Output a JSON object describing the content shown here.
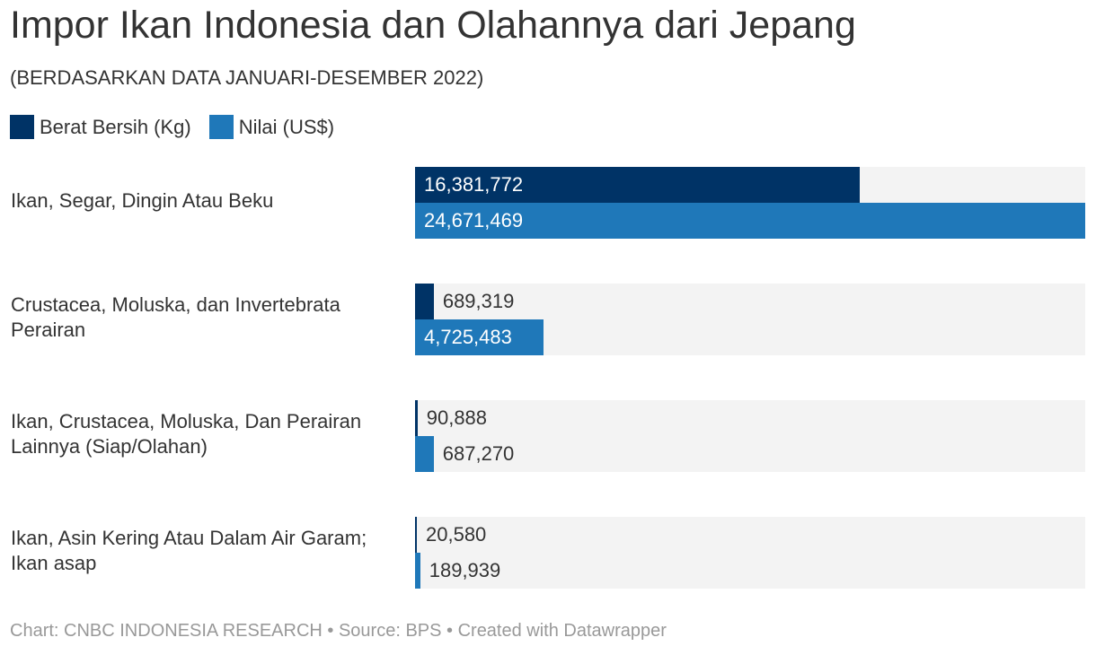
{
  "colors": {
    "berat": "#003366",
    "nilai": "#1f78b9",
    "track": "#f3f3f3"
  },
  "chart_data": {
    "type": "bar",
    "orientation": "horizontal",
    "title": "Impor Ikan Indonesia dan Olahannya dari Jepang",
    "subtitle": "(BERDASARKAN DATA JANUARI-DESEMBER 2022)",
    "categories": [
      "Ikan, Segar, Dingin Atau Beku",
      "Crustacea, Moluska, dan Invertebrata Perairan",
      "Ikan, Crustacea, Moluska, Dan Perairan Lainnya (Siap/Olahan)",
      "Ikan, Asin Kering Atau Dalam Air Garam; Ikan asap"
    ],
    "series": [
      {
        "name": "Berat Bersih (Kg)",
        "values": [
          16381772,
          689319,
          90888,
          20580
        ],
        "labels": [
          "16,381,772",
          "689,319",
          "90,888",
          "20,580"
        ]
      },
      {
        "name": "Nilai (US$)",
        "values": [
          24671469,
          4725483,
          687270,
          189939
        ],
        "labels": [
          "24,671,469",
          "4,725,483",
          "687,270",
          "189,939"
        ]
      }
    ],
    "xlim": [
      0,
      24671469
    ],
    "legend": "top-left",
    "grid": false
  },
  "footer": "Chart: CNBC INDONESIA RESEARCH • Source: BPS • Created with Datawrapper"
}
